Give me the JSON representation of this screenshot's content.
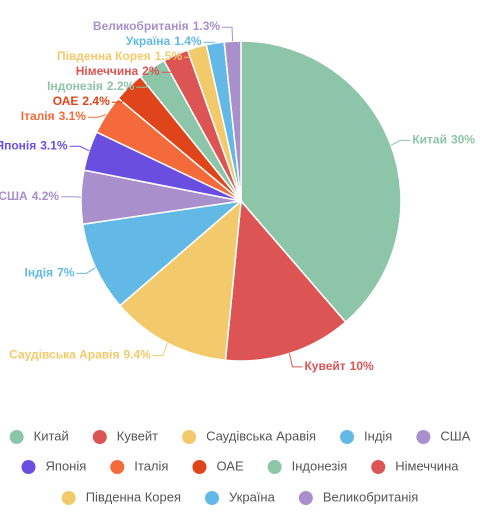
{
  "chart_data": {
    "type": "pie",
    "categories": [
      "Китай",
      "Кувейт",
      "Саудівська Аравія",
      "Індія",
      "США",
      "Японія",
      "Італія",
      "ОАЕ",
      "Індонезія",
      "Німеччина",
      "Південна Корея",
      "Україна",
      "Великобританія"
    ],
    "values": [
      30,
      10,
      9.4,
      7,
      4.2,
      3.1,
      3.1,
      2.4,
      2.2,
      2,
      1.5,
      1.4,
      1.3
    ],
    "value_labels": [
      "30%",
      "10%",
      "9.4%",
      "7%",
      "4.2%",
      "3.1%",
      "3.1%",
      "2.4%",
      "2.2%",
      "2%",
      "1.5%",
      "1.4%",
      "1.3%"
    ],
    "colors": [
      "#8cc5a8",
      "#dc5454",
      "#f2ca6b",
      "#62b9e6",
      "#a98fcb",
      "#6a4ee0",
      "#f56a3a",
      "#e0441b",
      "#8cc5a8",
      "#dc5454",
      "#f2ca6b",
      "#62b9e6",
      "#a98fcb"
    ],
    "legend": "bottom"
  }
}
